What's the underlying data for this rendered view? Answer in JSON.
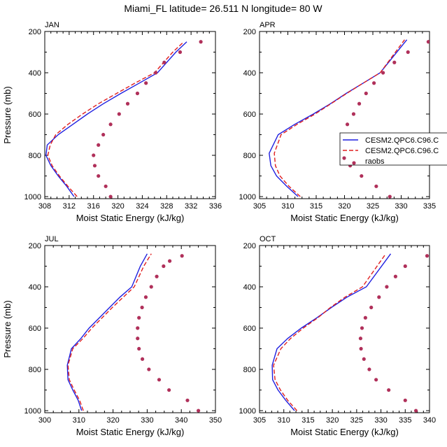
{
  "title": "Miami_FL  latitude= 26.511 N longitude= 80 W",
  "colors": {
    "model_a": "#1f1fe0",
    "model_b": "#e01f1f",
    "obs": "#b0305a"
  },
  "chart_data": [
    {
      "type": "line",
      "panel": "JAN",
      "xlabel": "Moist Static Energy (kJ/kg)",
      "ylabel": "Pressure (mb)",
      "xlim": [
        308,
        336
      ],
      "ylim": [
        1010,
        200
      ],
      "xticks": [
        308,
        312,
        316,
        320,
        324,
        328,
        332,
        336
      ],
      "yticks": [
        200,
        400,
        600,
        800,
        1000
      ],
      "series": [
        {
          "name": "CESM2.QPC6.C96.C",
          "style": "solid",
          "color": "#1f1fe0",
          "x": [
            312.8,
            311.6,
            310.2,
            309.0,
            308.2,
            308.4,
            310.2,
            312.6,
            315.0,
            317.6,
            320.5,
            323.5,
            326.5,
            329.5,
            331.3
          ],
          "y": [
            1000,
            950,
            900,
            850,
            800,
            750,
            700,
            650,
            600,
            550,
            500,
            450,
            400,
            300,
            250
          ]
        },
        {
          "name": "CESM2.QPC6.C96.C",
          "style": "dashed",
          "color": "#e01f1f",
          "x": [
            313.3,
            311.8,
            310.4,
            309.2,
            308.5,
            308.9,
            309.8,
            311.8,
            314.2,
            316.8,
            319.8,
            322.8,
            326.0,
            329.0,
            330.8
          ],
          "y": [
            1000,
            950,
            900,
            850,
            800,
            750,
            700,
            650,
            600,
            550,
            500,
            450,
            400,
            300,
            250
          ]
        },
        {
          "name": "raobs",
          "style": "markers",
          "color": "#b0305a",
          "x": [
            318.8,
            318.0,
            316.8,
            316.2,
            316.0,
            316.8,
            317.6,
            318.8,
            320.2,
            321.6,
            323.2,
            324.6,
            326.2,
            327.6,
            330.2,
            333.6
          ],
          "y": [
            1000,
            950,
            900,
            850,
            800,
            750,
            700,
            650,
            600,
            550,
            500,
            450,
            400,
            350,
            300,
            250
          ]
        }
      ]
    },
    {
      "type": "line",
      "panel": "APR",
      "xlabel": "Moist Static Energy (kJ/kg)",
      "ylabel": "",
      "xlim": [
        305,
        335
      ],
      "ylim": [
        1010,
        200
      ],
      "xticks": [
        305,
        310,
        315,
        320,
        325,
        330,
        335
      ],
      "yticks": [
        200,
        400,
        600,
        800,
        1000
      ],
      "legend": {
        "placement": "right",
        "entries": [
          "CESM2.QPC6.C96.C",
          "CESM2.QPC6.C96.C",
          "raobs"
        ]
      },
      "series": [
        {
          "name": "CESM2.QPC6.C96.C",
          "style": "solid",
          "color": "#1f1fe0",
          "x": [
            311.8,
            309.8,
            308.0,
            307.0,
            306.7,
            308.3,
            311.2,
            314.5,
            317.5,
            320.3,
            323.3,
            326.3,
            331.0
          ],
          "y": [
            1000,
            950,
            900,
            850,
            790,
            700,
            650,
            600,
            550,
            500,
            450,
            400,
            240
          ]
        },
        {
          "name": "CESM2.QPC6.C96.C",
          "style": "dashed",
          "color": "#e01f1f",
          "x": [
            312.2,
            310.2,
            308.6,
            307.8,
            307.6,
            308.8,
            311.6,
            314.8,
            317.6,
            320.4,
            323.3,
            326.3,
            330.6
          ],
          "y": [
            1000,
            950,
            900,
            850,
            790,
            700,
            650,
            600,
            550,
            500,
            450,
            400,
            240
          ]
        },
        {
          "name": "raobs",
          "style": "markers",
          "color": "#b0305a",
          "x": [
            328.0,
            325.6,
            323.0,
            321.0,
            319.8,
            319.5,
            319.6,
            320.5,
            321.6,
            322.6,
            323.8,
            325.2,
            326.8,
            328.8,
            331.2,
            334.8
          ],
          "y": [
            1000,
            950,
            900,
            850,
            800,
            750,
            700,
            650,
            600,
            550,
            500,
            450,
            400,
            350,
            300,
            250
          ]
        }
      ]
    },
    {
      "type": "line",
      "panel": "JUL",
      "xlabel": "Moist Static Energy (kJ/kg)",
      "ylabel": "Pressure (mb)",
      "xlim": [
        300,
        350
      ],
      "ylim": [
        1010,
        200
      ],
      "xticks": [
        300,
        310,
        320,
        330,
        340,
        350
      ],
      "yticks": [
        200,
        400,
        600,
        800,
        1000
      ],
      "series": [
        {
          "name": "CESM2.QPC6.C96.C",
          "style": "solid",
          "color": "#1f1fe0",
          "x": [
            310.8,
            309.8,
            308.2,
            306.8,
            306.6,
            307.8,
            310.6,
            313.0,
            316.0,
            319.0,
            322.0,
            325.5,
            328.0,
            330.0
          ],
          "y": [
            1000,
            950,
            900,
            850,
            780,
            700,
            650,
            600,
            550,
            500,
            450,
            400,
            300,
            240
          ]
        },
        {
          "name": "CESM2.QPC6.C96.C",
          "style": "dashed",
          "color": "#e01f1f",
          "x": [
            311.3,
            310.2,
            308.6,
            307.2,
            306.8,
            308.2,
            311.2,
            313.8,
            316.8,
            319.8,
            323.0,
            326.2,
            329.0,
            331.2
          ],
          "y": [
            1000,
            950,
            900,
            850,
            780,
            700,
            650,
            600,
            550,
            500,
            450,
            400,
            300,
            240
          ]
        },
        {
          "name": "raobs",
          "style": "markers",
          "color": "#b0305a",
          "x": [
            345.0,
            341.8,
            336.4,
            333.5,
            330.5,
            328.6,
            327.6,
            327.2,
            327.2,
            327.6,
            328.5,
            329.6,
            331.2,
            332.8,
            334.8,
            336.6,
            340.2
          ],
          "y": [
            1000,
            950,
            900,
            850,
            800,
            750,
            700,
            650,
            600,
            550,
            500,
            450,
            400,
            350,
            300,
            275,
            250
          ]
        }
      ]
    },
    {
      "type": "line",
      "panel": "OCT",
      "xlabel": "Moist Static Energy (kJ/kg)",
      "ylabel": "",
      "xlim": [
        305,
        340
      ],
      "ylim": [
        1010,
        200
      ],
      "xticks": [
        305,
        310,
        315,
        320,
        325,
        330,
        335,
        340
      ],
      "yticks": [
        200,
        400,
        600,
        800,
        1000
      ],
      "series": [
        {
          "name": "CESM2.QPC6.C96.C",
          "style": "solid",
          "color": "#1f1fe0",
          "x": [
            312.2,
            310.4,
            308.8,
            307.7,
            307.6,
            308.6,
            310.8,
            313.6,
            316.8,
            319.8,
            323.0,
            327.0,
            332.0
          ],
          "y": [
            1000,
            950,
            900,
            850,
            780,
            700,
            650,
            600,
            550,
            500,
            450,
            400,
            240
          ]
        },
        {
          "name": "CESM2.QPC6.C96.C",
          "style": "dashed",
          "color": "#e01f1f",
          "x": [
            312.7,
            310.8,
            309.3,
            308.2,
            307.9,
            309.4,
            311.4,
            314.0,
            317.0,
            319.6,
            322.6,
            326.2,
            331.0
          ],
          "y": [
            1000,
            950,
            900,
            850,
            780,
            700,
            650,
            600,
            550,
            500,
            450,
            400,
            240
          ]
        },
        {
          "name": "raobs",
          "style": "markers",
          "color": "#b0305a",
          "x": [
            337.2,
            335.0,
            331.6,
            329.0,
            327.6,
            326.5,
            325.9,
            325.8,
            326.1,
            326.8,
            328.0,
            329.6,
            331.2,
            333.0,
            335.0,
            339.5
          ],
          "y": [
            1000,
            950,
            900,
            850,
            800,
            750,
            700,
            650,
            600,
            550,
            500,
            450,
            400,
            350,
            300,
            250
          ]
        }
      ]
    }
  ]
}
